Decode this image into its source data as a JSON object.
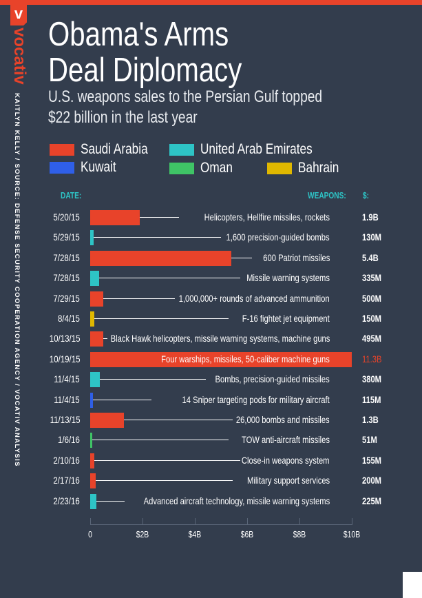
{
  "brand": {
    "logo_letter": "v",
    "name": "vocativ"
  },
  "credit": "KAITLYN KELLY / SOURCE: DEFENSE SECURITY COOPERATION AGENCY / VOCATIV ANALYSIS",
  "title": [
    "Obama's Arms",
    "Deal Diplomacy"
  ],
  "subtitle": [
    "U.S. weapons sales to the Persian Gulf topped",
    "$22 billion in the last year"
  ],
  "legend": [
    {
      "label": "Saudi Arabia",
      "color": "#e8432a"
    },
    {
      "label": "United Arab Emirates",
      "color": "#2ec4c6"
    },
    {
      "label": "Kuwait",
      "color": "#2f5fe8"
    },
    {
      "label": "Oman",
      "color": "#3fc466"
    },
    {
      "label": "Bahrain",
      "color": "#e0b800"
    }
  ],
  "headers": {
    "date": "DATE:",
    "weapons": "WEAPONS:",
    "value": "$:"
  },
  "chart_data": {
    "type": "bar",
    "xlabel": "",
    "ylabel": "",
    "xlim": [
      0,
      10
    ],
    "x_ticks": [
      "0",
      "$2B",
      "$4B",
      "$6B",
      "$8B",
      "$10B"
    ],
    "rows": [
      {
        "date": "5/20/15",
        "weapons": "Helicopters, Hellfire missiles, rockets",
        "value_label": "1.9B",
        "value": 1.9,
        "country": "Saudi Arabia"
      },
      {
        "date": "5/29/15",
        "weapons": "1,600 precision-guided bombs",
        "value_label": "130M",
        "value": 0.13,
        "country": "United Arab Emirates"
      },
      {
        "date": "7/28/15",
        "weapons": "600 Patriot missiles",
        "value_label": "5.4B",
        "value": 5.4,
        "country": "Saudi Arabia"
      },
      {
        "date": "7/28/15",
        "weapons": "Missile warning systems",
        "value_label": "335M",
        "value": 0.335,
        "country": "United Arab Emirates"
      },
      {
        "date": "7/29/15",
        "weapons": "1,000,000+ rounds of advanced ammunition",
        "value_label": "500M",
        "value": 0.5,
        "country": "Saudi Arabia"
      },
      {
        "date": "8/4/15",
        "weapons": "F-16 fightet jet equipment",
        "value_label": "150M",
        "value": 0.15,
        "country": "Bahrain"
      },
      {
        "date": "10/13/15",
        "weapons": "Black Hawk helicopters, missile warning systems, machine guns",
        "value_label": "495M",
        "value": 0.495,
        "country": "Saudi Arabia"
      },
      {
        "date": "10/19/15",
        "weapons": "Four warships, missiles, 50-caliber machine guns",
        "value_label": "11.3B",
        "value": 11.3,
        "country": "Saudi Arabia"
      },
      {
        "date": "11/4/15",
        "weapons": "Bombs, precision-guided missiles",
        "value_label": "380M",
        "value": 0.38,
        "country": "United Arab Emirates"
      },
      {
        "date": "11/4/15",
        "weapons": "14 Sniper targeting pods for military aircraft",
        "value_label": "115M",
        "value": 0.115,
        "country": "Kuwait"
      },
      {
        "date": "11/13/15",
        "weapons": "26,000 bombs and missiles",
        "value_label": "1.3B",
        "value": 1.3,
        "country": "Saudi Arabia"
      },
      {
        "date": "1/6/16",
        "weapons": "TOW anti-aircraft missiles",
        "value_label": "51M",
        "value": 0.051,
        "country": "Oman"
      },
      {
        "date": "2/10/16",
        "weapons": "Close-in weapons system",
        "value_label": "155M",
        "value": 0.155,
        "country": "Saudi Arabia"
      },
      {
        "date": "2/17/16",
        "weapons": "Military support services",
        "value_label": "200M",
        "value": 0.2,
        "country": "Saudi Arabia"
      },
      {
        "date": "2/23/16",
        "weapons": "Advanced aircraft technology, missile warning systems",
        "value_label": "225M",
        "value": 0.225,
        "country": "United Arab Emirates"
      }
    ]
  }
}
